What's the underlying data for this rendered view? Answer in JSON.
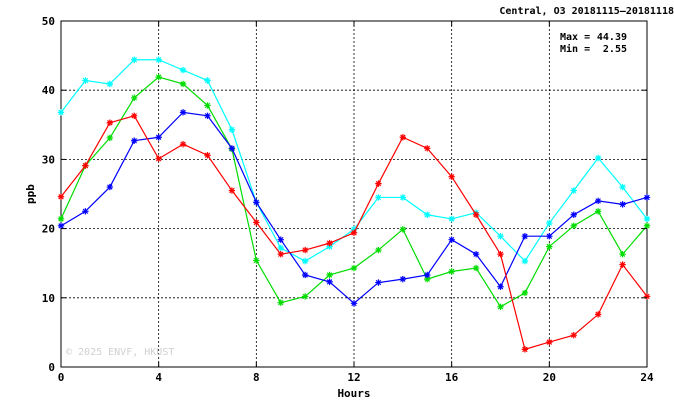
{
  "chart_data": {
    "type": "line",
    "title": "Central, O3 20181115—20181118",
    "xlabel": "Hours",
    "ylabel": "ppb",
    "xlim": [
      0,
      24
    ],
    "ylim": [
      0,
      50
    ],
    "xticks": [
      0,
      4,
      8,
      12,
      16,
      20,
      24
    ],
    "yticks": [
      0,
      10,
      20,
      30,
      40,
      50
    ],
    "grid": true,
    "marker": "asterisk",
    "annotations": {
      "max_label": "Max =",
      "max_value": "44.39",
      "min_label": "Min =",
      "min_value": "2.55"
    },
    "watermark": "© 2025  ENVF, HKUST",
    "x": [
      0,
      1,
      2,
      3,
      4,
      5,
      6,
      7,
      8,
      9,
      10,
      11,
      12,
      13,
      14,
      15,
      16,
      17,
      18,
      19,
      20,
      21,
      22,
      23,
      24
    ],
    "series": [
      {
        "color": "#00ffff",
        "values": [
          36.8,
          41.4,
          40.9,
          44.4,
          44.4,
          42.9,
          41.4,
          34.3,
          23.8,
          17.2,
          15.3,
          17.4,
          19.9,
          24.5,
          24.5,
          22.0,
          21.4,
          22.3,
          18.9,
          15.3,
          20.8,
          25.5,
          30.2,
          26.0,
          21.4
        ]
      },
      {
        "color": "#00dd00",
        "values": [
          21.4,
          29.1,
          33.1,
          38.9,
          41.9,
          40.9,
          37.8,
          31.5,
          15.4,
          9.3,
          10.2,
          13.3,
          14.3,
          16.9,
          19.9,
          12.7,
          13.8,
          14.3,
          8.7,
          10.7,
          17.4,
          20.4,
          22.5,
          16.3,
          20.4
        ]
      },
      {
        "color": "#0000ff",
        "values": [
          20.4,
          22.5,
          26.0,
          32.7,
          33.2,
          36.8,
          36.3,
          31.6,
          23.8,
          18.4,
          13.3,
          12.3,
          9.2,
          12.2,
          12.7,
          13.3,
          18.4,
          16.3,
          11.6,
          18.9,
          18.9,
          22.0,
          24.0,
          23.5,
          24.5
        ]
      },
      {
        "color": "#ff0000",
        "values": [
          24.6,
          29.1,
          35.3,
          36.3,
          30.1,
          32.2,
          30.6,
          25.5,
          20.9,
          16.3,
          16.9,
          17.9,
          19.4,
          26.5,
          33.2,
          31.6,
          27.5,
          22.0,
          16.3,
          2.55,
          3.6,
          4.6,
          7.6,
          14.8,
          10.2
        ]
      }
    ]
  }
}
